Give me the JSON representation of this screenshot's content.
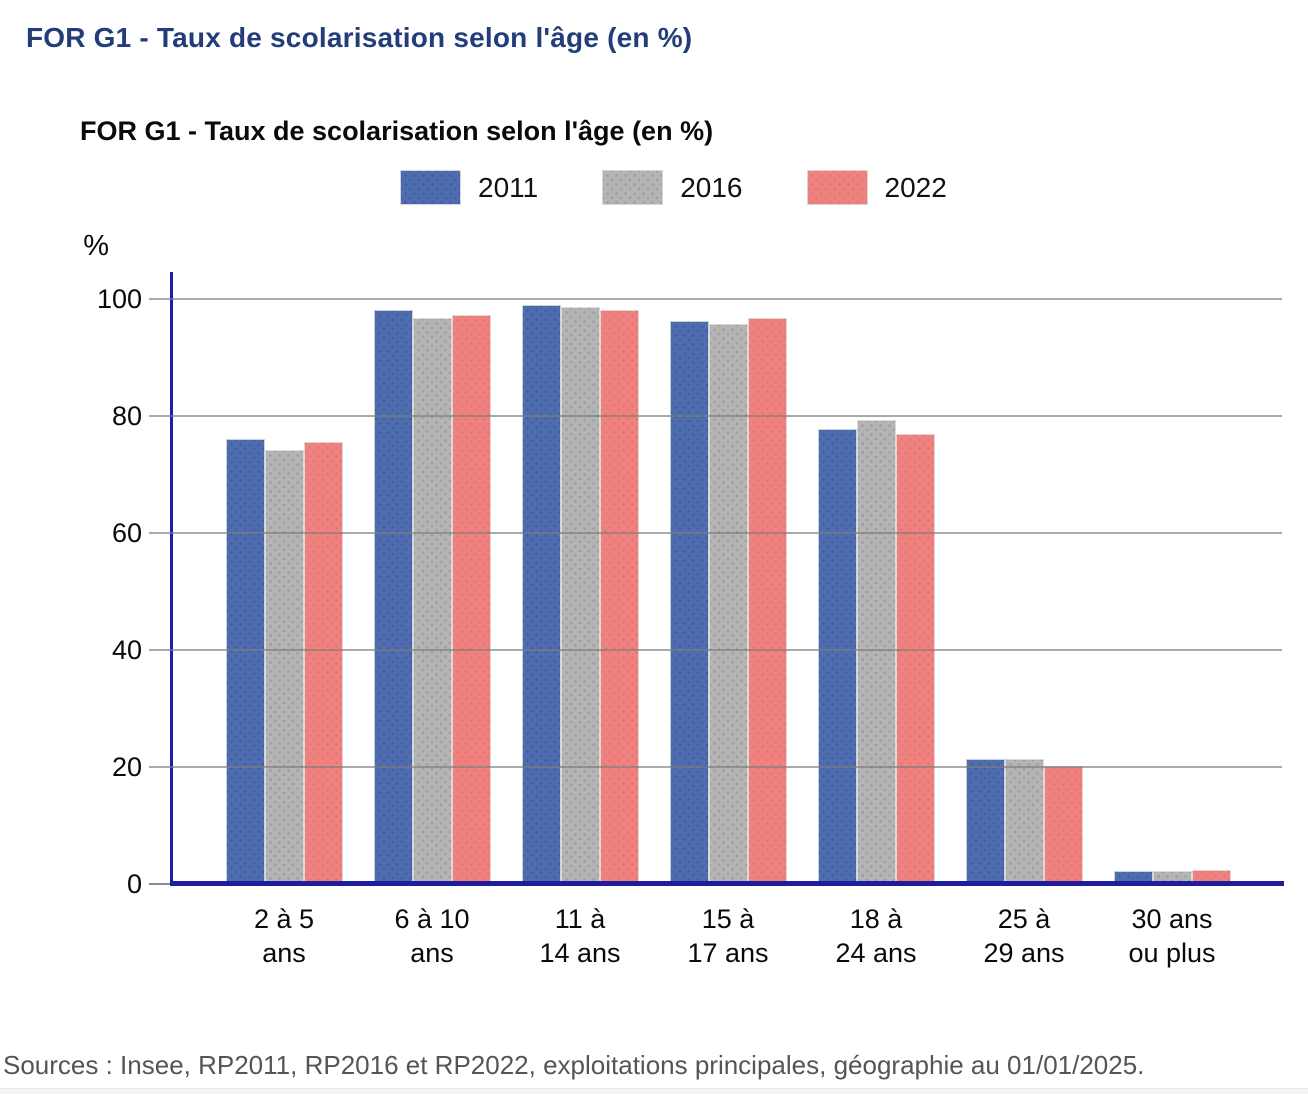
{
  "page": {
    "title": "FOR G1 - Taux de scolarisation selon l'âge (en %)"
  },
  "chart": {
    "title": "FOR G1 - Taux de scolarisation selon l'âge (en %)",
    "y_unit": "%",
    "source": "Sources : Insee, RP2011, RP2016 et RP2022, exploitations principales, géographie au 01/01/2025."
  },
  "chart_data": {
    "type": "bar",
    "title": "FOR G1 - Taux de scolarisation selon l'âge (en %)",
    "categories": [
      "2 à 5 ans",
      "6 à 10 ans",
      "11 à 14 ans",
      "15 à 17 ans",
      "18 à 24 ans",
      "25 à 29 ans",
      "30 ans ou plus"
    ],
    "category_lines": [
      [
        "2 à 5",
        "ans"
      ],
      [
        "6 à 10",
        "ans"
      ],
      [
        "11 à",
        "14 ans"
      ],
      [
        "15 à",
        "17 ans"
      ],
      [
        "18 à",
        "24 ans"
      ],
      [
        "25 à",
        "29 ans"
      ],
      [
        "30 ans",
        "ou plus"
      ]
    ],
    "series": [
      {
        "name": "2011",
        "color": "#4e6dae",
        "dot_color": "rgba(26,35,110,0.22)",
        "values": [
          76.0,
          98.1,
          99.0,
          96.2,
          77.8,
          21.4,
          2.3
        ]
      },
      {
        "name": "2016",
        "color": "#b4b4b4",
        "dot_color": "rgba(80,80,80,0.22)",
        "values": [
          74.2,
          96.8,
          98.6,
          95.7,
          79.4,
          21.4,
          2.3
        ]
      },
      {
        "name": "2022",
        "color": "#ef827f",
        "dot_color": "rgba(185,70,70,0.20)",
        "values": [
          75.5,
          97.2,
          98.1,
          96.7,
          77.0,
          20.1,
          2.4
        ]
      }
    ],
    "xlabel": "",
    "ylabel": "%",
    "ylim": [
      0,
      100
    ],
    "yticks": [
      0,
      20,
      40,
      60,
      80,
      100
    ],
    "grid": true,
    "legend_position": "top"
  },
  "colors": {
    "page_title": "#223d7a",
    "axis_line": "#1b1bad",
    "baseline": "#1d1d9e",
    "gridline": "#7d7d7d",
    "source_text": "#555555"
  }
}
